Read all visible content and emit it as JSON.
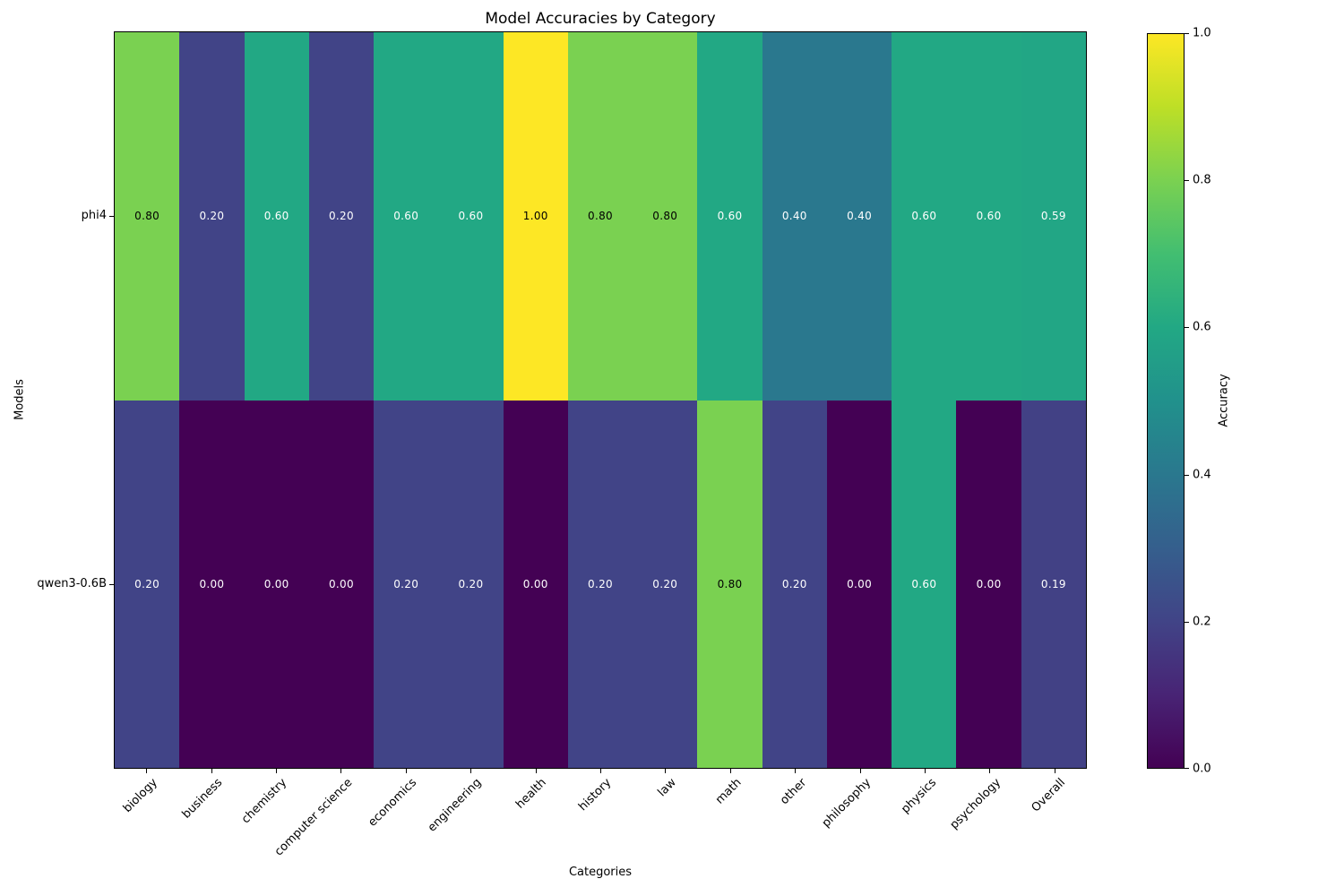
{
  "chart_data": {
    "type": "heatmap",
    "title": "Model Accuracies by Category",
    "xlabel": "Categories",
    "ylabel": "Models",
    "categories": [
      "biology",
      "business",
      "chemistry",
      "computer science",
      "economics",
      "engineering",
      "health",
      "history",
      "law",
      "math",
      "other",
      "philosophy",
      "physics",
      "psychology",
      "Overall"
    ],
    "rows": [
      "phi4",
      "qwen3-0.6B"
    ],
    "series": [
      {
        "name": "phi4",
        "values": [
          0.8,
          0.2,
          0.6,
          0.2,
          0.6,
          0.6,
          1.0,
          0.8,
          0.8,
          0.6,
          0.4,
          0.4,
          0.6,
          0.6,
          0.59
        ]
      },
      {
        "name": "qwen3-0.6B",
        "values": [
          0.2,
          0.0,
          0.0,
          0.0,
          0.2,
          0.2,
          0.0,
          0.2,
          0.2,
          0.8,
          0.2,
          0.0,
          0.6,
          0.0,
          0.19
        ]
      }
    ],
    "value_decimals": 2,
    "vmin": 0.0,
    "vmax": 1.0,
    "colormap": "viridis",
    "colormap_stops": [
      "#440154",
      "#482475",
      "#414487",
      "#355f8d",
      "#2a788e",
      "#21918c",
      "#22a884",
      "#42be71",
      "#7ad151",
      "#bddf26",
      "#fde725"
    ],
    "cell_text_light": "#ffffff",
    "cell_text_dark": "#000000",
    "legend_position": "right-colorbar",
    "grid": false,
    "colorbar": {
      "label": "Accuracy",
      "ticks": [
        0.0,
        0.2,
        0.4,
        0.6,
        0.8,
        1.0
      ],
      "tick_labels": [
        "0.0",
        "0.2",
        "0.4",
        "0.6",
        "0.8",
        "1.0"
      ]
    }
  }
}
